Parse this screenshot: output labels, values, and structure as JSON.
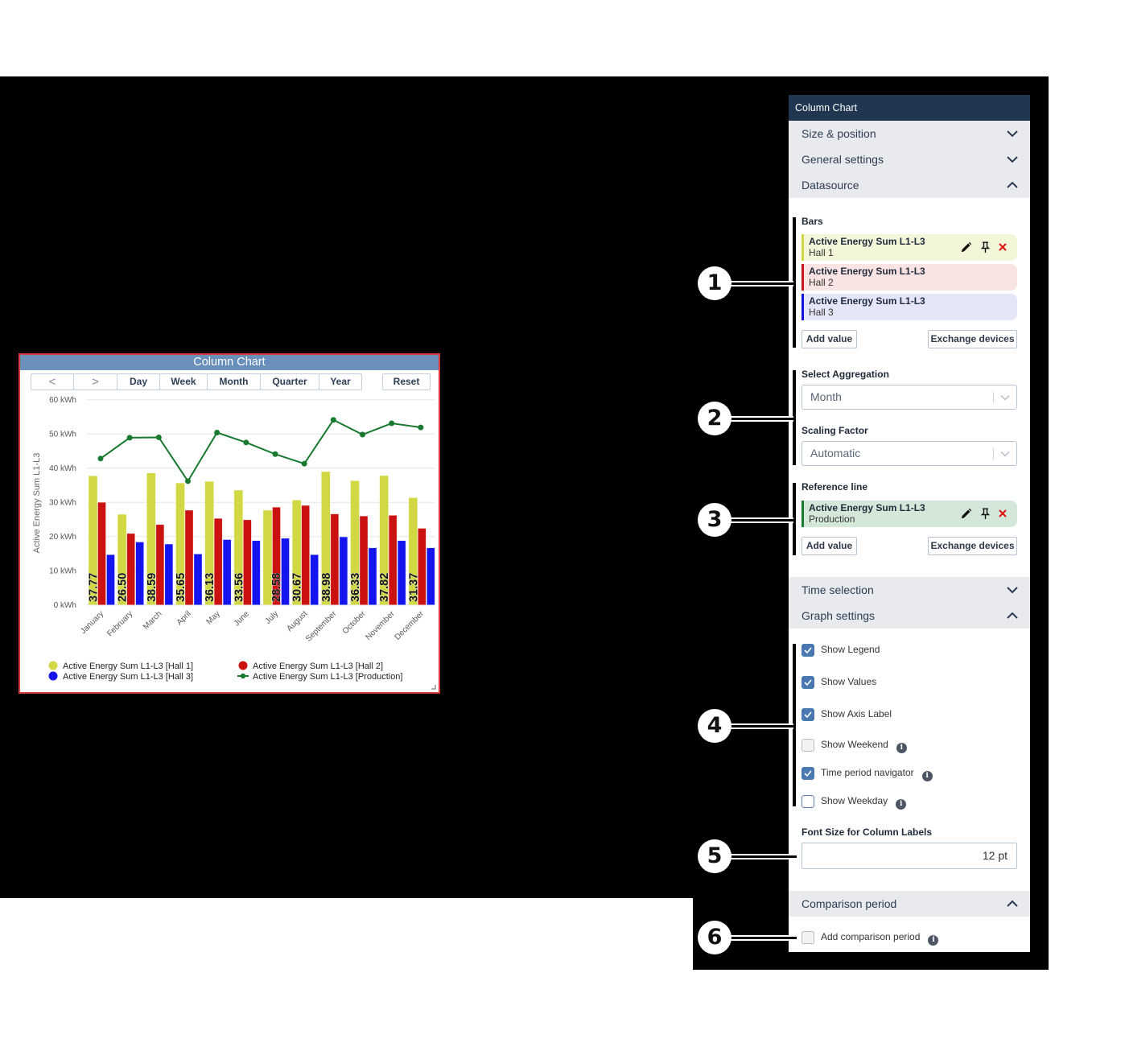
{
  "chart_widget": {
    "title": "Column Chart",
    "nav": {
      "prev_label": "<",
      "next_label": ">",
      "buttons": [
        "Day",
        "Week",
        "Month",
        "Quarter",
        "Year"
      ],
      "reset": "Reset"
    }
  },
  "chart_data": {
    "type": "bar",
    "title": "Column Chart",
    "categories": [
      "January",
      "February",
      "March",
      "April",
      "May",
      "June",
      "July",
      "August",
      "September",
      "October",
      "November",
      "December"
    ],
    "series": [
      {
        "name": "Active Energy Sum L1-L3 [Hall 1]",
        "type": "bar",
        "color": "#d2d843",
        "values": [
          37.77,
          26.5,
          38.59,
          35.65,
          36.13,
          33.56,
          27.7,
          30.67,
          38.98,
          36.33,
          37.82,
          31.37
        ]
      },
      {
        "name": "Active Energy Sum L1-L3 [Hall 2]",
        "type": "bar",
        "color": "#cc1111",
        "values": [
          30.0,
          20.9,
          23.5,
          27.7,
          25.3,
          24.9,
          28.58,
          29.1,
          26.6,
          26.0,
          26.2,
          22.4
        ]
      },
      {
        "name": "Active Energy Sum L1-L3 [Hall 3]",
        "type": "bar",
        "color": "#1414f0",
        "values": [
          14.7,
          18.4,
          17.8,
          14.9,
          19.1,
          18.8,
          19.5,
          14.7,
          19.9,
          16.7,
          18.8,
          16.7
        ]
      },
      {
        "name": "Active Energy Sum L1-L3 [Production]",
        "type": "line",
        "color": "#177a2e",
        "values": [
          42.8,
          48.9,
          49.0,
          36.2,
          50.4,
          47.5,
          44.1,
          41.3,
          54.1,
          49.8,
          53.1,
          51.9
        ]
      }
    ],
    "value_labels": [
      {
        "text": "37.77",
        "series": 0
      },
      {
        "text": "26.50",
        "series": 0
      },
      {
        "text": "38.59",
        "series": 0
      },
      {
        "text": "35.65",
        "series": 0
      },
      {
        "text": "36.13",
        "series": 0
      },
      {
        "text": "33.56",
        "series": 0
      },
      {
        "text": "28.58",
        "series": 1
      },
      {
        "text": "30.67",
        "series": 0
      },
      {
        "text": "38.98",
        "series": 0
      },
      {
        "text": "36.33",
        "series": 0
      },
      {
        "text": "37.82",
        "series": 0
      },
      {
        "text": "31.37",
        "series": 0
      }
    ],
    "xlabel": "",
    "ylabel": "Active Energy Sum L1-L3",
    "y_ticks": [
      {
        "value": 0,
        "label": "0 kWh"
      },
      {
        "value": 10,
        "label": "10 kWh"
      },
      {
        "value": 20,
        "label": "20 kWh"
      },
      {
        "value": 30,
        "label": "30 kWh"
      },
      {
        "value": 40,
        "label": "40 kWh"
      },
      {
        "value": 50,
        "label": "50 kWh"
      },
      {
        "value": 60,
        "label": "60 kWh"
      }
    ],
    "ylim": [
      0,
      60
    ],
    "grid": true,
    "legend_position": "bottom"
  },
  "panel": {
    "title": "Column Chart",
    "sections": {
      "size_position": {
        "label": "Size & position",
        "expanded": false
      },
      "general_settings": {
        "label": "General settings",
        "expanded": false
      },
      "datasource": {
        "label": "Datasource",
        "expanded": true
      },
      "time_selection": {
        "label": "Time selection",
        "expanded": false
      },
      "graph_settings": {
        "label": "Graph settings",
        "expanded": true
      },
      "comparison_period": {
        "label": "Comparison period",
        "expanded": true
      }
    },
    "bars": {
      "label": "Bars",
      "items": [
        {
          "title": "Active Energy Sum L1-L3",
          "subtitle": "Hall 1",
          "color": "#cfd63f",
          "bg": "#f4f6da"
        },
        {
          "title": "Active Energy Sum L1-L3",
          "subtitle": "Hall 2",
          "color": "#c8141a",
          "bg": "#f9e3e3"
        },
        {
          "title": "Active Energy Sum L1-L3",
          "subtitle": "Hall 3",
          "color": "#1212d8",
          "bg": "#e6e6f9"
        }
      ],
      "add_value": "Add value",
      "exchange_devices": "Exchange devices"
    },
    "aggregation": {
      "label": "Select Aggregation",
      "value": "Month"
    },
    "scaling": {
      "label": "Scaling Factor",
      "value": "Automatic"
    },
    "reference_line": {
      "label": "Reference line",
      "items": [
        {
          "title": "Active Energy Sum L1-L3",
          "subtitle": "Production",
          "color": "#1b7a34",
          "bg": "#d4e8d9"
        }
      ],
      "add_value": "Add value",
      "exchange_devices": "Exchange devices"
    },
    "graph_settings": {
      "options": [
        {
          "label": "Show Legend",
          "checked": true,
          "info": false
        },
        {
          "label": "Show Values",
          "checked": true,
          "info": false
        },
        {
          "label": "Show Axis Label",
          "checked": true,
          "info": false
        },
        {
          "label": "Show Weekend",
          "checked": false,
          "info": true
        },
        {
          "label": "Time period navigator",
          "checked": true,
          "info": true
        },
        {
          "label": "Show Weekday",
          "checked": false,
          "info": true
        }
      ]
    },
    "font_size": {
      "label": "Font Size for Column Labels",
      "value": "12 pt"
    },
    "comparison": {
      "label": "Add comparison period",
      "checked": false,
      "info": true
    },
    "info_glyph": "i"
  },
  "callouts": [
    "1",
    "2",
    "3",
    "4",
    "5",
    "6"
  ]
}
